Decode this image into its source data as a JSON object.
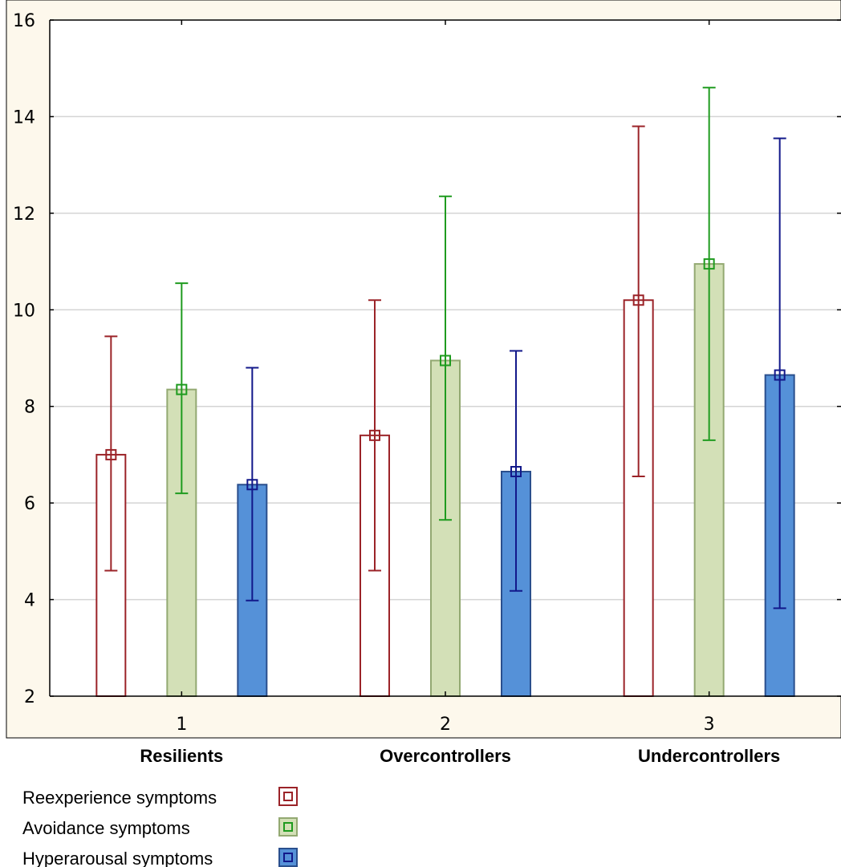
{
  "chart_data": {
    "type": "bar",
    "title": "",
    "xlabel": "",
    "ylabel": "",
    "ylim": [
      2,
      16
    ],
    "yticks": [
      "2",
      "4",
      "6",
      "8",
      "10",
      "12",
      "14",
      "16"
    ],
    "categories": [
      "1",
      "2",
      "3"
    ],
    "group_labels": [
      "Resilients",
      "Overcontrollers",
      "Undercontrollers"
    ],
    "grid": "horizontal",
    "legend_position": "bottom-left",
    "series": [
      {
        "name": "Reexperience symptoms",
        "values": [
          7.0,
          7.4,
          10.2
        ],
        "error_low": [
          4.6,
          4.6,
          6.55
        ],
        "error_high": [
          9.45,
          10.2,
          13.8
        ],
        "fill": "#ffffff",
        "stroke": "#9b2328",
        "err_color": "#9b2328"
      },
      {
        "name": "Avoidance symptoms",
        "values": [
          8.35,
          8.95,
          10.95
        ],
        "error_low": [
          6.2,
          5.65,
          7.3
        ],
        "error_high": [
          10.55,
          12.35,
          14.6
        ],
        "fill": "#d3e0b7",
        "stroke": "#93a972",
        "err_color": "#1f9b1f"
      },
      {
        "name": "Hyperarousal symptoms",
        "values": [
          6.38,
          6.65,
          8.65
        ],
        "error_low": [
          3.98,
          4.18,
          3.82
        ],
        "error_high": [
          8.8,
          9.15,
          13.55
        ],
        "fill": "#5591d8",
        "stroke": "#2a4f8d",
        "err_color": "#12188a"
      }
    ]
  }
}
